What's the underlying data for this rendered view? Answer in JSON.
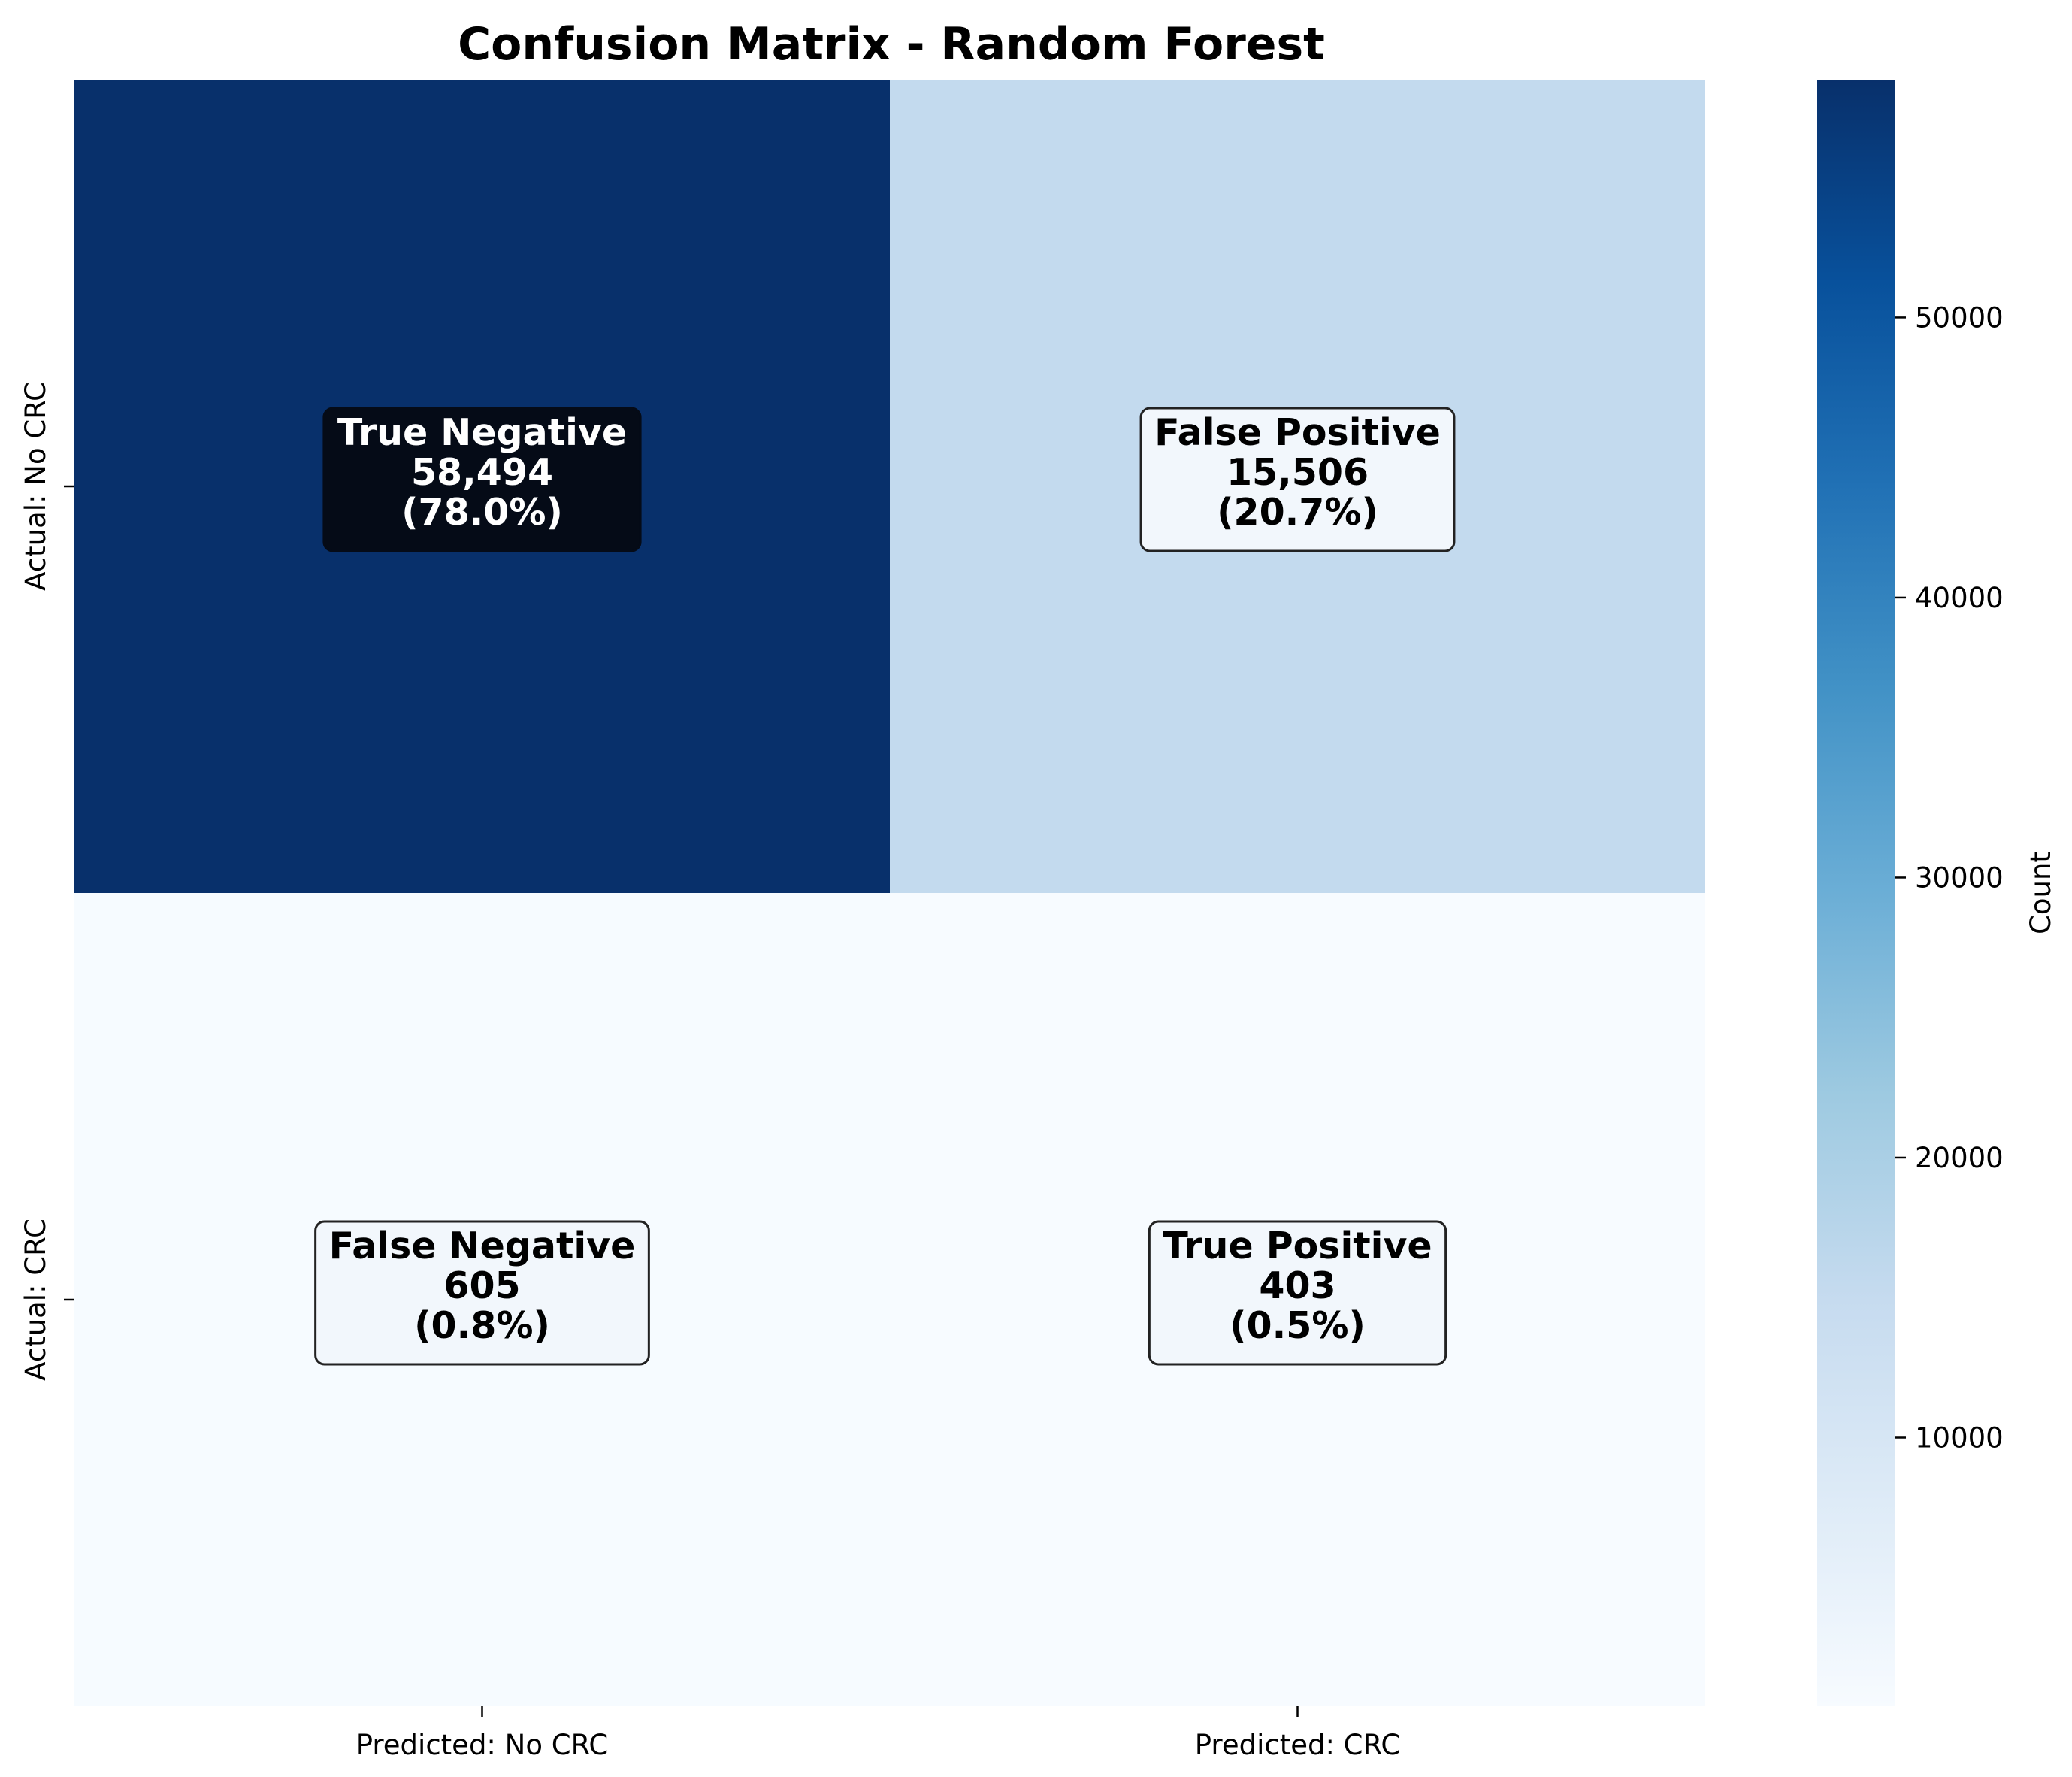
{
  "chart_data": {
    "type": "heatmap",
    "title": "Confusion Matrix - Random Forest",
    "x_tick_labels": [
      "Predicted: No CRC",
      "Predicted: CRC"
    ],
    "y_tick_labels": [
      "Actual: No CRC",
      "Actual: CRC"
    ],
    "cells": [
      {
        "row": 0,
        "col": 0,
        "label": "True Negative",
        "count": 58494,
        "count_text": "58,494",
        "percent_text": "(78.0%)"
      },
      {
        "row": 0,
        "col": 1,
        "label": "False Positive",
        "count": 15506,
        "count_text": "15,506",
        "percent_text": "(20.7%)"
      },
      {
        "row": 1,
        "col": 0,
        "label": "False Negative",
        "count": 605,
        "count_text": "605",
        "percent_text": "(0.8%)"
      },
      {
        "row": 1,
        "col": 1,
        "label": "True Positive",
        "count": 403,
        "count_text": "403",
        "percent_text": "(0.5%)"
      }
    ],
    "colormap": "Blues",
    "colorbar": {
      "label": "Count",
      "range": [
        403,
        58494
      ],
      "ticks": [
        10000,
        20000,
        30000,
        40000,
        50000
      ],
      "tick_labels": [
        "10000",
        "20000",
        "30000",
        "40000",
        "50000"
      ]
    },
    "colors": {
      "dark_box": "#050b17",
      "light_box": "#f2f7fc",
      "box_border": "#222222"
    }
  }
}
